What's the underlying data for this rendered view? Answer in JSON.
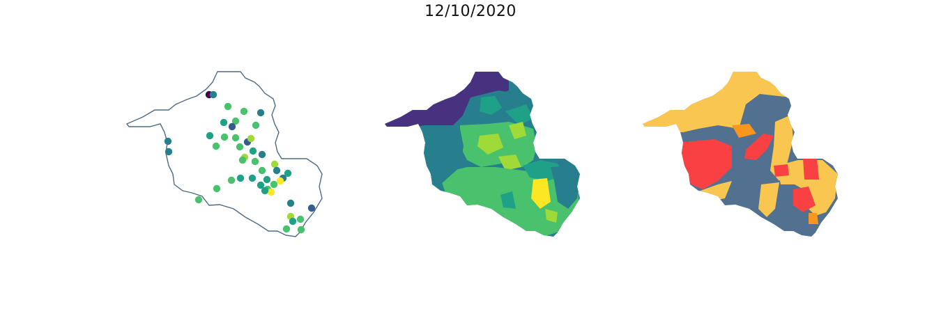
{
  "title": "12/10/2020",
  "colors": {
    "outline": "#4b6a88",
    "viridis": [
      "#440154",
      "#46327e",
      "#365c8d",
      "#277f8e",
      "#1fa187",
      "#4ac16d",
      "#a0da39",
      "#fde725"
    ],
    "risk": {
      "gray": "#52708f",
      "yellow": "#f9c74f",
      "orange": "#f8961e",
      "red": "#f94144"
    }
  },
  "maps": [
    {
      "kind": "points",
      "name": "municipality-points"
    },
    {
      "kind": "choropleth",
      "name": "viridis-choropleth"
    },
    {
      "kind": "choropleth",
      "name": "risk-choropleth"
    }
  ]
}
